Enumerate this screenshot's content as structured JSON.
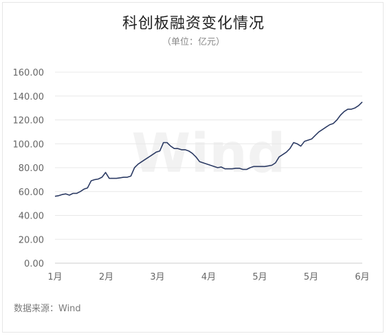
{
  "title": "科创板融资变化情况",
  "subtitle": "（单位：亿元）",
  "source": "数据来源：Wind",
  "watermark": "Wind",
  "colors": {
    "line": "#2b3a63",
    "grid": "#e8e8e8",
    "axis": "#cccccc",
    "tick_text": "#666666"
  },
  "chart_data": {
    "type": "line",
    "title": "科创板融资变化情况",
    "xlabel": "",
    "ylabel": "",
    "ylim": [
      0,
      160
    ],
    "yticks": [
      "0.00",
      "20.00",
      "40.00",
      "60.00",
      "80.00",
      "100.00",
      "120.00",
      "140.00",
      "160.00"
    ],
    "xticks": [
      "1月",
      "2月",
      "3月",
      "4月",
      "5月",
      "5月",
      "6月"
    ],
    "grid": true,
    "series": [
      {
        "values": [
          56,
          56.5,
          57.5,
          58,
          57,
          58.5,
          58.5,
          60,
          62,
          63,
          69,
          70,
          70.5,
          72,
          76,
          71,
          71,
          71,
          71.5,
          72,
          72,
          73,
          80,
          83,
          85,
          87,
          89,
          91,
          93,
          94,
          101,
          101,
          98,
          96,
          96,
          95,
          95,
          94,
          92,
          89,
          85,
          84,
          83,
          82,
          81,
          80,
          80.5,
          79,
          79,
          79,
          79.5,
          79.5,
          78.5,
          78.5,
          80,
          81,
          81,
          81,
          81,
          81.5,
          82,
          84,
          89,
          91,
          93,
          96,
          101,
          100,
          98,
          102,
          103,
          104,
          107,
          110,
          112,
          114,
          116,
          117,
          120,
          124,
          127,
          129,
          129,
          130,
          132,
          135
        ]
      }
    ]
  }
}
